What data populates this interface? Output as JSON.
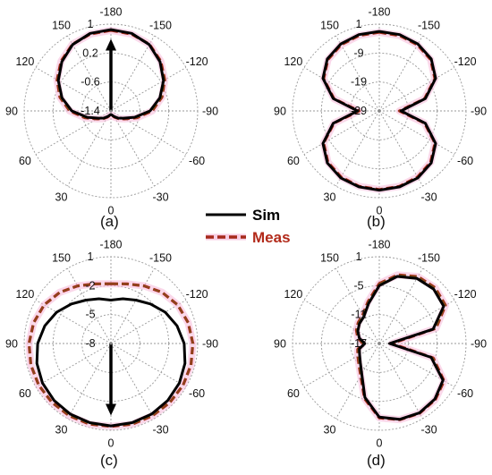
{
  "legend": {
    "entries": [
      {
        "label": "Sim",
        "color": "#000000",
        "style": "solid"
      },
      {
        "label": "Meas",
        "color": "#a52a1a",
        "dash_color": "#7a5a1a",
        "style": "dashed"
      }
    ]
  },
  "chart_data": [
    {
      "type": "polar",
      "panel_label": "(a)",
      "angle_ticks": [
        "-180",
        "-150",
        "-120",
        "-90",
        "-60",
        "-30",
        "0",
        "30",
        "60",
        "90",
        "120",
        "150"
      ],
      "radial_ticks": [
        "1",
        "0.2",
        "-0.6",
        "-1.4"
      ],
      "rlim": [
        -1.4,
        1
      ],
      "angle_unit": "deg",
      "arrow": {
        "direction_deg": 180
      },
      "series": [
        {
          "name": "Sim",
          "theta": [
            -180,
            -165,
            -150,
            -135,
            -120,
            -105,
            -90,
            -75,
            -60,
            -45,
            -30,
            -15,
            0,
            15,
            30,
            45,
            60,
            75,
            90,
            105,
            120,
            135,
            150,
            165,
            180
          ],
          "r": [
            0.85,
            0.82,
            0.72,
            0.52,
            0.28,
            0.0,
            -0.32,
            -0.72,
            -1.0,
            -1.12,
            -1.22,
            -1.28,
            -1.3,
            -1.28,
            -1.22,
            -1.12,
            -1.0,
            -0.72,
            -0.32,
            0.0,
            0.28,
            0.52,
            0.72,
            0.82,
            0.85
          ]
        },
        {
          "name": "Meas",
          "theta": [
            -180,
            -165,
            -150,
            -135,
            -120,
            -105,
            -90,
            -75,
            -60,
            -45,
            -30,
            -15,
            0,
            15,
            30,
            45,
            60,
            75,
            90,
            105,
            120,
            135,
            150,
            165,
            180
          ],
          "r": [
            0.83,
            0.8,
            0.73,
            0.55,
            0.32,
            0.06,
            -0.26,
            -0.66,
            -0.96,
            -1.1,
            -1.2,
            -1.27,
            -1.3,
            -1.27,
            -1.2,
            -1.1,
            -0.96,
            -0.66,
            -0.26,
            0.06,
            0.32,
            0.55,
            0.73,
            0.8,
            0.83
          ]
        }
      ]
    },
    {
      "type": "polar",
      "panel_label": "(b)",
      "angle_ticks": [
        "-180",
        "-150",
        "-120",
        "-90",
        "-60",
        "-30",
        "0",
        "30",
        "60",
        "90",
        "120",
        "150"
      ],
      "radial_ticks": [
        "1",
        "-9",
        "-19",
        "-29"
      ],
      "rlim": [
        -29,
        1
      ],
      "angle_unit": "deg",
      "series": [
        {
          "name": "Sim",
          "theta": [
            -180,
            -165,
            -150,
            -135,
            -120,
            -105,
            -90,
            -75,
            -60,
            -45,
            -30,
            -15,
            0,
            15,
            30,
            45,
            60,
            75,
            90,
            105,
            120,
            135,
            150,
            165,
            180
          ],
          "r": [
            -1.5,
            -1.7,
            -2.3,
            -3.6,
            -6.5,
            -12.5,
            -21.5,
            -12.5,
            -6.5,
            -3.6,
            -2.3,
            -1.8,
            -1.6,
            -1.8,
            -2.3,
            -3.6,
            -6.5,
            -12.5,
            -21.5,
            -12.5,
            -6.5,
            -3.6,
            -2.3,
            -1.7,
            -1.5
          ]
        },
        {
          "name": "Meas",
          "theta": [
            -180,
            -165,
            -150,
            -135,
            -120,
            -105,
            -90,
            -75,
            -60,
            -45,
            -30,
            -15,
            0,
            15,
            30,
            45,
            60,
            75,
            90,
            105,
            120,
            135,
            150,
            165,
            180
          ],
          "r": [
            -1.8,
            -2.0,
            -2.6,
            -3.9,
            -6.8,
            -12.8,
            -22,
            -12.8,
            -6.8,
            -3.9,
            -2.6,
            -2.0,
            -1.8,
            -2.0,
            -2.6,
            -3.9,
            -6.8,
            -12.8,
            -22,
            -12.8,
            -6.8,
            -3.9,
            -2.6,
            -2.0,
            -1.8
          ]
        }
      ]
    },
    {
      "type": "polar",
      "panel_label": "(c)",
      "angle_ticks": [
        "-180",
        "-150",
        "-120",
        "-90",
        "-60",
        "-30",
        "0",
        "30",
        "60",
        "90",
        "120",
        "150"
      ],
      "radial_ticks": [
        "1",
        "-2",
        "-5",
        "-8"
      ],
      "rlim": [
        -8,
        1
      ],
      "angle_unit": "deg",
      "arrow": {
        "direction_deg": 0
      },
      "series": [
        {
          "name": "Sim",
          "theta": [
            -180,
            -165,
            -150,
            -135,
            -120,
            -105,
            -90,
            -75,
            -60,
            -45,
            -30,
            -15,
            0,
            15,
            30,
            45,
            60,
            75,
            90,
            105,
            120,
            135,
            150,
            165,
            180
          ],
          "r": [
            -3.5,
            -3.2,
            -2.8,
            -2.2,
            -1.5,
            -0.9,
            -0.4,
            -0.05,
            0.2,
            0.35,
            0.45,
            0.5,
            0.55,
            0.5,
            0.45,
            0.35,
            0.2,
            -0.05,
            -0.4,
            -0.9,
            -1.5,
            -2.2,
            -2.8,
            -3.2,
            -3.5
          ]
        },
        {
          "name": "Meas",
          "theta": [
            -180,
            -165,
            -150,
            -135,
            -120,
            -105,
            -90,
            -75,
            -60,
            -45,
            -30,
            -15,
            0,
            15,
            30,
            45,
            60,
            75,
            90,
            105,
            120,
            135,
            150,
            165,
            180
          ],
          "r": [
            -1.8,
            -1.6,
            -1.1,
            -0.5,
            0.0,
            0.3,
            0.5,
            0.6,
            0.65,
            0.65,
            0.65,
            0.65,
            0.6,
            0.65,
            0.65,
            0.65,
            0.65,
            0.6,
            0.5,
            0.3,
            0.0,
            -0.5,
            -1.1,
            -1.6,
            -1.8
          ]
        }
      ]
    },
    {
      "type": "polar",
      "panel_label": "(d)",
      "angle_ticks": [
        "-180",
        "-150",
        "-120",
        "-90",
        "-60",
        "-30",
        "0",
        "30",
        "60",
        "90",
        "120",
        "150"
      ],
      "radial_ticks": [
        "1",
        "-5",
        "-11",
        "-17"
      ],
      "rlim": [
        -20,
        1
      ],
      "angle_unit": "deg",
      "series": [
        {
          "name": "Sim",
          "theta": [
            -180,
            -165,
            -150,
            -135,
            -120,
            -105,
            -90,
            -75,
            -60,
            -45,
            -30,
            -15,
            0,
            15,
            30,
            45,
            60,
            75,
            90,
            105,
            120,
            135,
            150,
            165,
            180
          ],
          "r": [
            -6,
            -3.2,
            -1.8,
            -1.4,
            -2.0,
            -6.5,
            -17.5,
            -7.0,
            -2.2,
            -1.0,
            -0.6,
            -1.0,
            -2.2,
            -6.5,
            -11.5,
            -13.5,
            -14.5,
            -15,
            -16.5,
            -15,
            -14,
            -13.2,
            -12.5,
            -10,
            -6
          ]
        },
        {
          "name": "Meas",
          "theta": [
            -180,
            -165,
            -150,
            -135,
            -120,
            -105,
            -90,
            -75,
            -60,
            -45,
            -30,
            -15,
            0,
            15,
            30,
            45,
            60,
            75,
            90,
            105,
            120,
            135,
            150,
            165,
            180
          ],
          "r": [
            -5.5,
            -2.8,
            -1.3,
            -0.9,
            -1.5,
            -5.8,
            -17,
            -6.5,
            -1.9,
            -0.8,
            -0.5,
            -0.9,
            -2.0,
            -6.2,
            -11,
            -13,
            -14,
            -14.6,
            -16,
            -14.6,
            -13.6,
            -12.8,
            -12,
            -9.5,
            -5.5
          ]
        }
      ]
    }
  ]
}
